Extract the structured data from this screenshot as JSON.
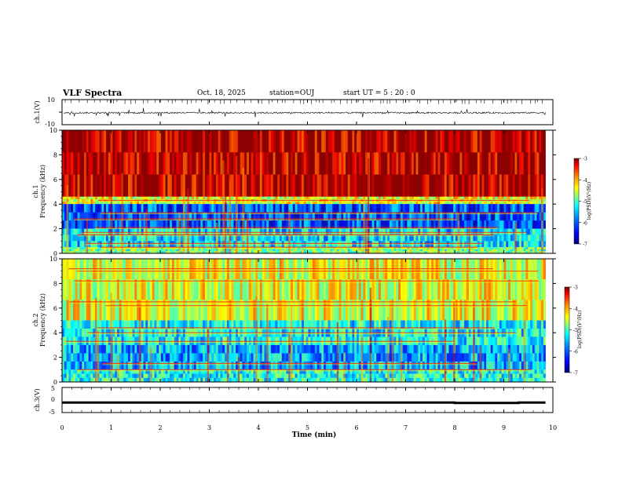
{
  "header": {
    "title": "VLF Spectra",
    "date": "Oct. 18, 2025",
    "station": "station=OUJ",
    "start_ut": "start  UT =   5 : 20 : 0"
  },
  "chart_data": [
    {
      "type": "line",
      "panel": "ch1-waveform",
      "ylabel": "ch.1(V)",
      "ylim": [
        -10,
        10
      ],
      "yticks": [
        "10",
        "-10"
      ],
      "xlim": [
        0,
        10
      ],
      "description_of_signal": "dense noisy trace centered near -0.5 V with spikes",
      "series": [
        {
          "values_min": -2.5,
          "values_max": 2.0,
          "baseline": -0.5
        }
      ]
    },
    {
      "type": "heatmap",
      "panel": "ch1-spectrogram",
      "ylabel": "ch.1\nFrequency (kHz)",
      "ylim": [
        0,
        10
      ],
      "yticks": [
        "0",
        "2",
        "4",
        "6",
        "8",
        "10"
      ],
      "xlim": [
        0,
        9.85
      ],
      "colorbar": {
        "label": "log(PSD)(V²/Hz)",
        "range": [
          -7,
          -3
        ],
        "ticks": [
          "-3",
          "-4",
          "-5",
          "-6",
          "-7"
        ]
      },
      "bands": [
        {
          "f_low": 4.6,
          "f_high": 10,
          "level": -3.2
        },
        {
          "f_low": 4.0,
          "f_high": 4.6,
          "level": -4.6
        },
        {
          "f_low": 2.0,
          "f_high": 4.0,
          "level": -6.2
        },
        {
          "f_low": 0.5,
          "f_high": 2.0,
          "level": -5.6
        },
        {
          "f_low": 0,
          "f_high": 0.5,
          "level": -5.0
        }
      ],
      "tone_lines_khz": [
        0.5,
        0.8,
        1.5,
        1.7,
        2.1,
        2.8,
        3.3,
        4.3
      ]
    },
    {
      "type": "heatmap",
      "panel": "ch2-spectrogram",
      "ylabel": "ch.2\nFrequency (kHz)",
      "ylim": [
        0,
        10
      ],
      "yticks": [
        "0",
        "2",
        "4",
        "6",
        "8",
        "10"
      ],
      "xlim": [
        0,
        9.85
      ],
      "colorbar": {
        "label": "log(PSD)(V²/Hz)",
        "range": [
          -7,
          -3
        ],
        "ticks": [
          "-3",
          "-4",
          "-5",
          "-6",
          "-7"
        ]
      },
      "bands": [
        {
          "f_low": 5.0,
          "f_high": 10,
          "level": -4.6
        },
        {
          "f_low": 3.0,
          "f_high": 5.0,
          "level": -5.5
        },
        {
          "f_low": 1.0,
          "f_high": 3.0,
          "level": -5.8
        },
        {
          "f_low": 0,
          "f_high": 1.0,
          "level": -5.4
        }
      ],
      "tone_lines_khz": [
        1.0,
        1.5,
        3.3,
        4.0,
        4.4,
        6.2,
        6.5,
        8.2,
        9.0,
        9.2
      ]
    },
    {
      "type": "line",
      "panel": "ch3-waveform",
      "ylabel": "ch.3(V)",
      "ylim": [
        -5,
        5
      ],
      "yticks": [
        "5",
        "0",
        "-5"
      ],
      "xlim": [
        0,
        10
      ],
      "xlabel": "Time (min)",
      "xticks": [
        "0",
        "1",
        "2",
        "3",
        "4",
        "5",
        "6",
        "7",
        "8",
        "9",
        "10"
      ],
      "series": [
        {
          "x": [
            0,
            8.0,
            8.0,
            9.3,
            9.3,
            9.85
          ],
          "values": [
            -1.0,
            -1.0,
            -1.2,
            -1.2,
            -1.0,
            -1.0
          ]
        }
      ]
    }
  ],
  "colors": {
    "colormap": [
      "#00007f",
      "#0000ff",
      "#007fff",
      "#00ffff",
      "#7fff7f",
      "#ffff00",
      "#ff7f00",
      "#ff0000",
      "#7f0000"
    ],
    "axes": "#000000",
    "background": "#ffffff"
  }
}
